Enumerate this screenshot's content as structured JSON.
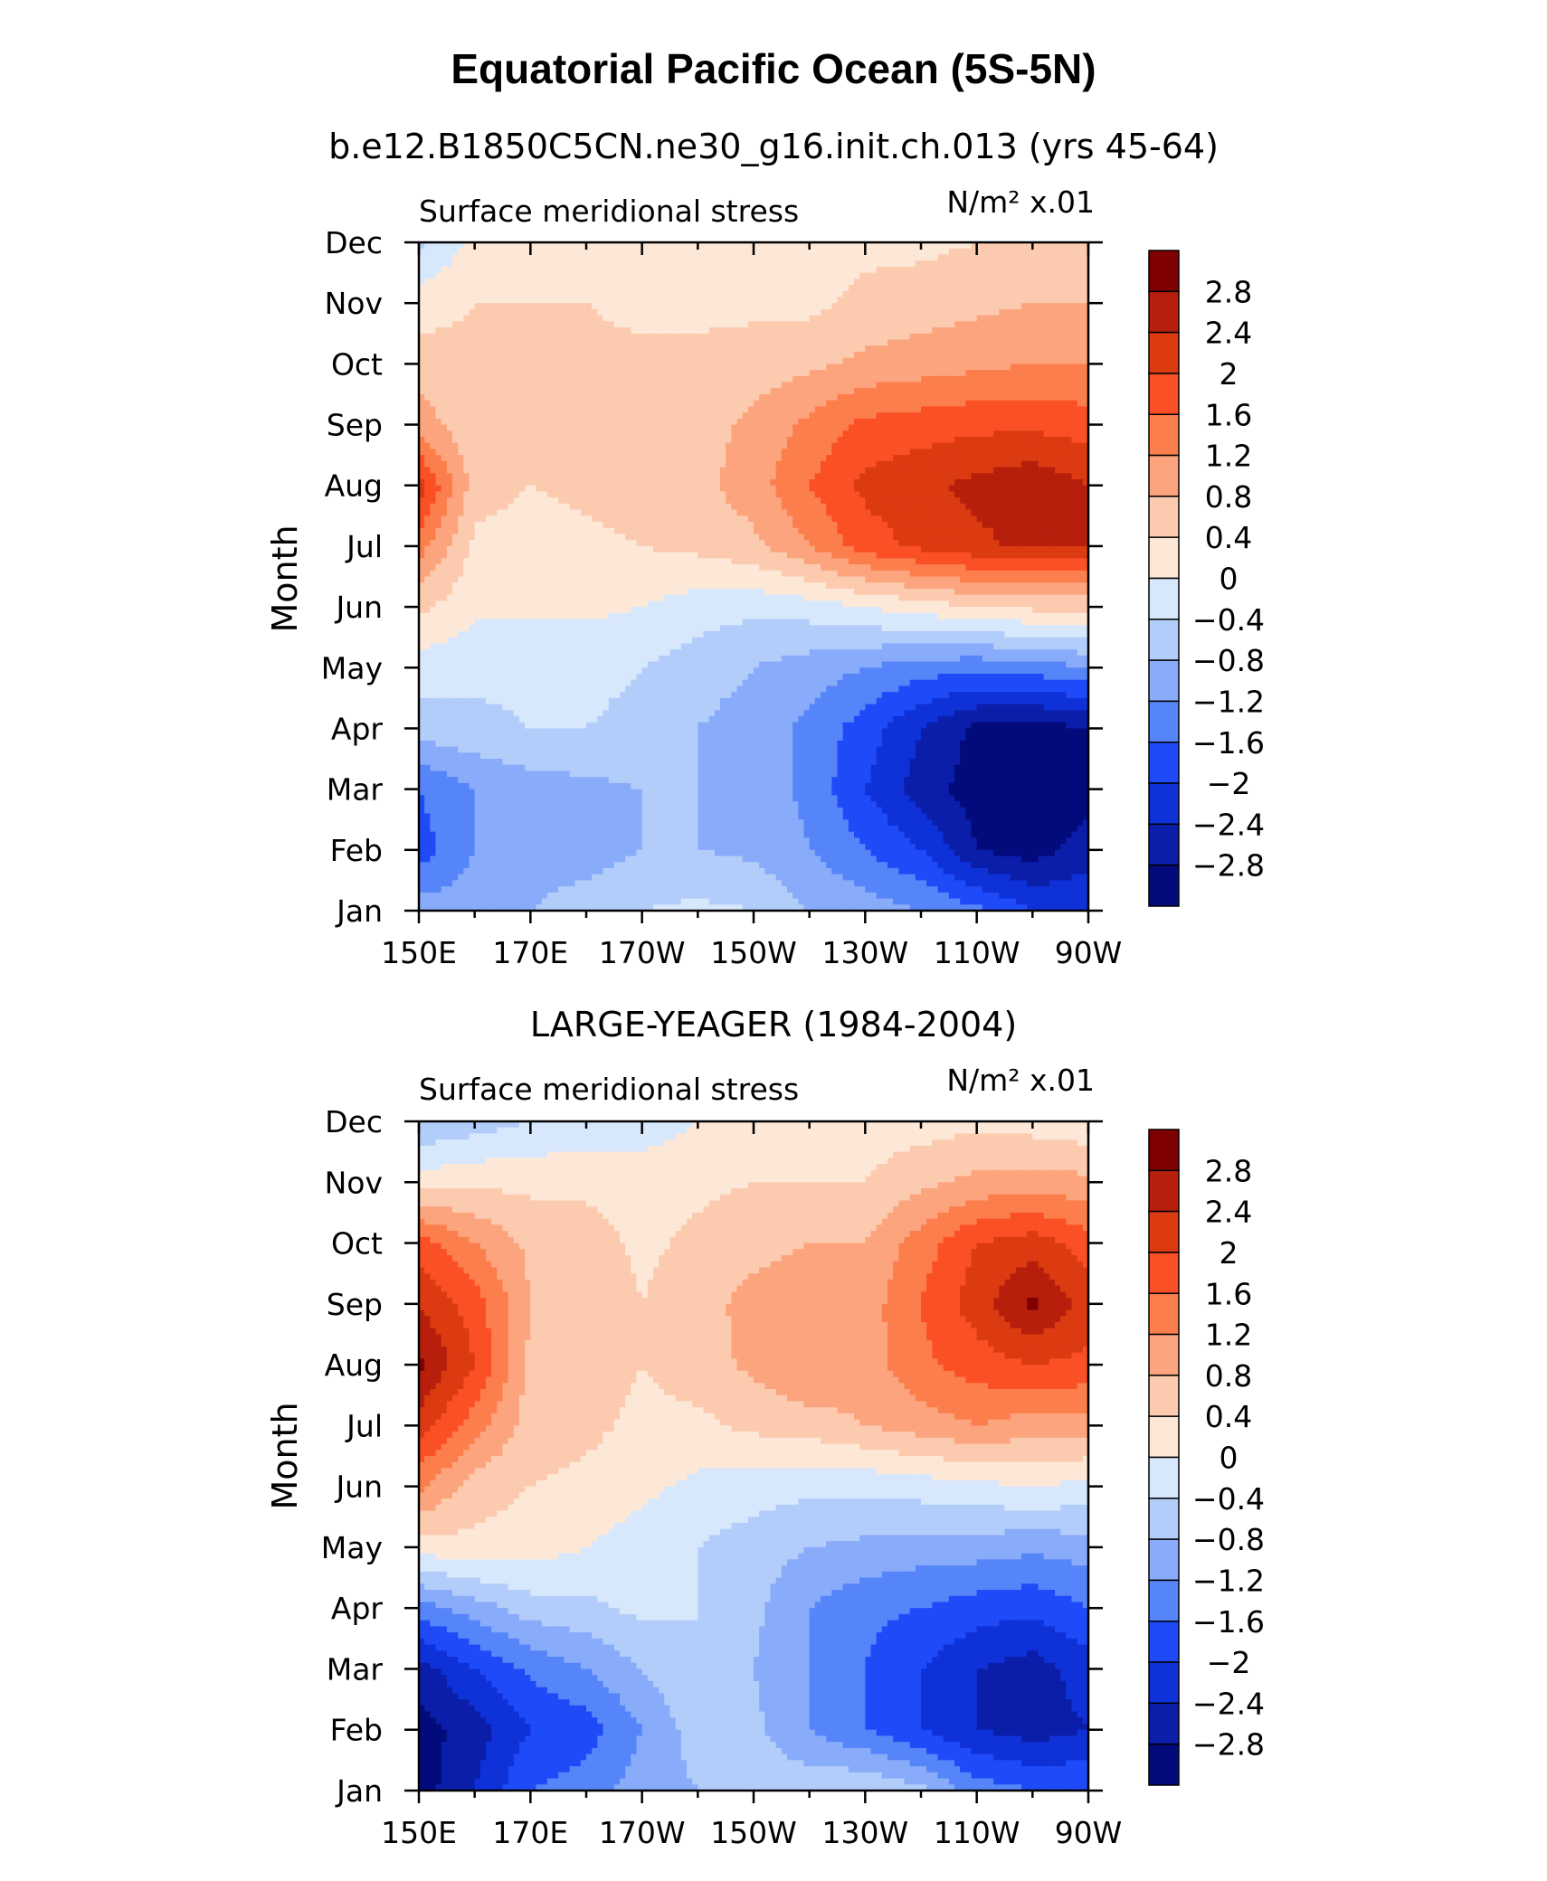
{
  "figure": {
    "title": "Equatorial Pacific Ocean (5S-5N)"
  },
  "chart_data": [
    {
      "type": "heatmap",
      "title": "b.e12.B1850C5CN.ne30_g16.init.ch.013 (yrs 45-64)",
      "left_string": "Surface meridional stress",
      "right_string": "N/m² x.01",
      "xlabel": "",
      "ylabel": "Month",
      "x_ticks": [
        "150E",
        "170E",
        "170W",
        "150W",
        "130W",
        "110W",
        "90W"
      ],
      "y_ticks": [
        "Jan",
        "Feb",
        "Mar",
        "Apr",
        "May",
        "Jun",
        "Jul",
        "Aug",
        "Sep",
        "Oct",
        "Nov",
        "Dec"
      ],
      "x_lon_range": [
        150,
        270
      ],
      "contour_levels": [
        "2.8",
        "2.4",
        "2",
        "1.6",
        "1.2",
        "0.8",
        "0.4",
        "0",
        "−0.4",
        "−0.8",
        "−1.2",
        "−1.6",
        "−2",
        "−2.4",
        "−2.8"
      ],
      "x_lon": [
        150,
        160,
        170,
        180,
        190,
        200,
        210,
        220,
        230,
        240,
        250,
        260,
        270
      ],
      "months": [
        "Jan",
        "Feb",
        "Mar",
        "Apr",
        "May",
        "Jun",
        "Jul",
        "Aug",
        "Sep",
        "Oct",
        "Nov",
        "Dec"
      ],
      "values": [
        [
          -1.0,
          -1.0,
          -0.8,
          -0.6,
          -0.4,
          -0.3,
          -0.4,
          -0.8,
          -1.0,
          -1.2,
          -1.5,
          -2.0,
          -2.0
        ],
        [
          -1.8,
          -1.2,
          -1.0,
          -1.0,
          -0.8,
          -0.8,
          -0.9,
          -1.2,
          -1.6,
          -2.0,
          -2.8,
          -3.0,
          -2.6
        ],
        [
          -1.6,
          -1.2,
          -1.0,
          -0.9,
          -0.8,
          -0.8,
          -1.0,
          -1.3,
          -2.0,
          -2.6,
          -3.0,
          -3.1,
          -3.0
        ],
        [
          -0.6,
          -0.5,
          -0.4,
          -0.4,
          -0.5,
          -0.8,
          -1.0,
          -1.3,
          -1.8,
          -2.4,
          -2.9,
          -3.0,
          -2.8
        ],
        [
          -0.2,
          -0.3,
          -0.3,
          -0.3,
          -0.4,
          -0.6,
          -0.8,
          -1.0,
          -1.2,
          -1.4,
          -1.5,
          -1.4,
          -1.2
        ],
        [
          0.5,
          0.1,
          0.1,
          0.1,
          0.0,
          -0.2,
          -0.3,
          -0.2,
          0.0,
          0.2,
          0.4,
          0.5,
          0.5
        ],
        [
          1.4,
          0.3,
          0.2,
          0.3,
          0.4,
          0.5,
          0.7,
          1.2,
          1.8,
          2.1,
          2.3,
          2.5,
          2.4
        ],
        [
          2.2,
          0.6,
          0.4,
          0.5,
          0.6,
          0.7,
          1.0,
          1.6,
          2.1,
          2.3,
          2.5,
          2.7,
          2.4
        ],
        [
          1.0,
          0.5,
          0.5,
          0.5,
          0.5,
          0.6,
          0.9,
          1.3,
          1.7,
          1.8,
          1.9,
          1.9,
          1.8
        ],
        [
          0.6,
          0.5,
          0.5,
          0.5,
          0.5,
          0.5,
          0.6,
          0.7,
          0.9,
          1.0,
          1.1,
          1.2,
          1.2
        ],
        [
          0.2,
          0.4,
          0.4,
          0.4,
          0.3,
          0.3,
          0.3,
          0.3,
          0.5,
          0.6,
          0.7,
          0.8,
          0.8
        ],
        [
          -0.5,
          0.1,
          0.2,
          0.2,
          0.2,
          0.2,
          0.2,
          0.2,
          0.3,
          0.3,
          0.4,
          0.4,
          0.5
        ]
      ]
    },
    {
      "type": "heatmap",
      "title": "LARGE-YEAGER (1984-2004)",
      "left_string": "Surface meridional stress",
      "right_string": "N/m² x.01",
      "xlabel": "",
      "ylabel": "Month",
      "x_ticks": [
        "150E",
        "170E",
        "170W",
        "150W",
        "130W",
        "110W",
        "90W"
      ],
      "y_ticks": [
        "Jan",
        "Feb",
        "Mar",
        "Apr",
        "May",
        "Jun",
        "Jul",
        "Aug",
        "Sep",
        "Oct",
        "Nov",
        "Dec"
      ],
      "x_lon_range": [
        150,
        270
      ],
      "contour_levels": [
        "2.8",
        "2.4",
        "2",
        "1.6",
        "1.2",
        "0.8",
        "0.4",
        "0",
        "−0.4",
        "−0.8",
        "−1.2",
        "−1.6",
        "−2",
        "−2.4",
        "−2.8"
      ],
      "x_lon": [
        150,
        160,
        170,
        180,
        190,
        200,
        210,
        220,
        230,
        240,
        250,
        260,
        270
      ],
      "months": [
        "Jan",
        "Feb",
        "Mar",
        "Apr",
        "May",
        "Jun",
        "Jul",
        "Aug",
        "Sep",
        "Oct",
        "Nov",
        "Dec"
      ],
      "values": [
        [
          -3.0,
          -2.4,
          -1.6,
          -1.4,
          -1.0,
          -0.8,
          -0.6,
          -0.5,
          -0.4,
          -0.7,
          -1.4,
          -1.6,
          -1.6
        ],
        [
          -3.0,
          -2.6,
          -2.0,
          -1.8,
          -1.2,
          -0.6,
          -0.7,
          -1.2,
          -1.6,
          -2.0,
          -2.4,
          -2.6,
          -2.4
        ],
        [
          -2.6,
          -2.0,
          -1.5,
          -1.2,
          -0.8,
          -0.4,
          -0.8,
          -1.2,
          -1.6,
          -2.0,
          -2.4,
          -2.6,
          -2.2
        ],
        [
          -1.4,
          -1.0,
          -0.6,
          -0.5,
          -0.3,
          -0.4,
          -0.7,
          -1.2,
          -1.5,
          -1.6,
          -1.8,
          -1.9,
          -1.6
        ],
        [
          0.2,
          0.3,
          0.2,
          0.0,
          -0.2,
          -0.4,
          -0.6,
          -0.8,
          -0.9,
          -1.0,
          -1.0,
          -1.1,
          -1.0
        ],
        [
          1.3,
          0.6,
          0.4,
          0.3,
          0.1,
          -0.1,
          -0.2,
          -0.3,
          -0.3,
          -0.2,
          -0.1,
          0.0,
          -0.1
        ],
        [
          2.2,
          1.4,
          0.6,
          0.5,
          0.3,
          0.3,
          0.5,
          0.6,
          0.8,
          1.0,
          1.2,
          1.0,
          1.0
        ],
        [
          2.9,
          2.0,
          0.7,
          0.6,
          0.4,
          0.6,
          0.9,
          1.2,
          1.0,
          1.5,
          1.8,
          2.0,
          1.9
        ],
        [
          2.4,
          1.8,
          0.8,
          0.8,
          0.4,
          0.7,
          0.9,
          1.0,
          1.0,
          1.6,
          2.2,
          2.9,
          2.2
        ],
        [
          1.8,
          1.2,
          0.7,
          0.6,
          0.3,
          0.5,
          0.7,
          0.8,
          0.8,
          1.4,
          2.0,
          2.2,
          1.8
        ],
        [
          0.2,
          0.3,
          0.3,
          0.3,
          0.2,
          0.3,
          0.4,
          0.4,
          0.4,
          0.7,
          0.9,
          1.0,
          0.9
        ],
        [
          -0.8,
          -0.6,
          -0.4,
          -0.3,
          -0.2,
          0.0,
          0.2,
          0.2,
          0.2,
          0.2,
          0.3,
          0.2,
          0.1
        ]
      ]
    }
  ],
  "colors": {
    "levels_high_to_low": [
      "#7f0000",
      "#b61f0b",
      "#dc3b12",
      "#fb5025",
      "#fc7e4c",
      "#fca47d",
      "#fccbaf",
      "#fde8d8",
      "#d8e8fc",
      "#b3cdfb",
      "#88abfa",
      "#5685f9",
      "#1e4bf7",
      "#0f31d8",
      "#0a1ea9",
      "#020a7c"
    ]
  }
}
